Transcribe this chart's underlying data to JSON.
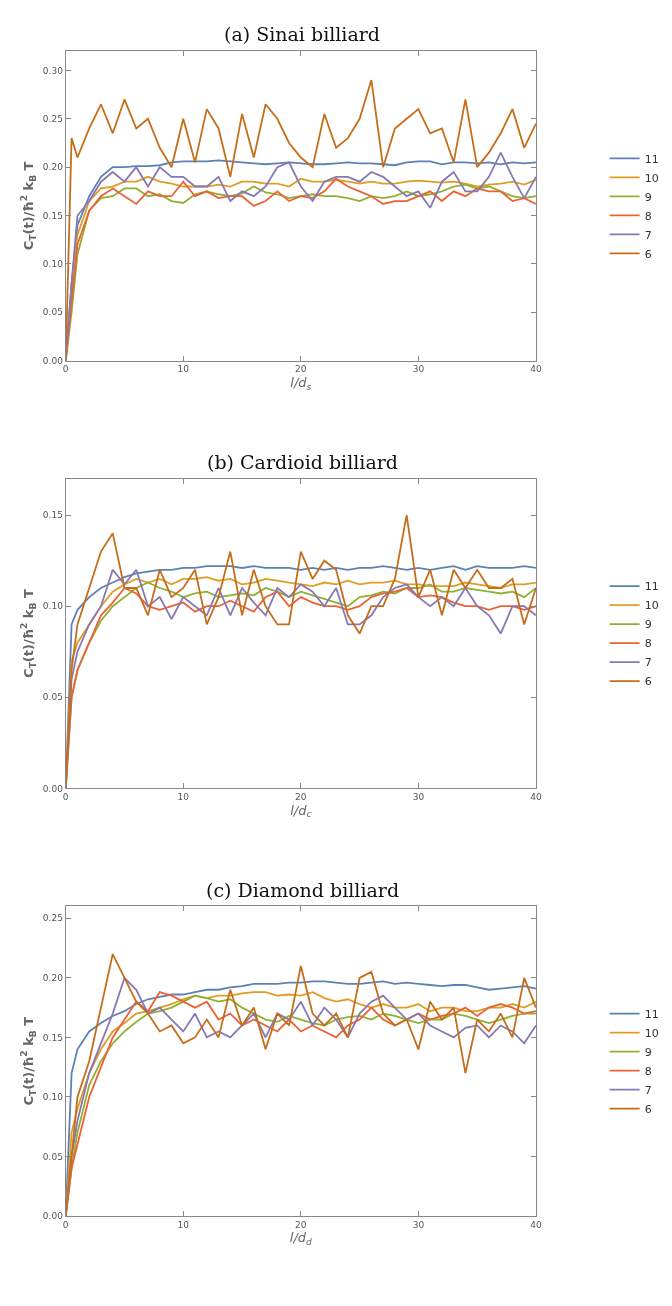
{
  "chart_data": [
    {
      "type": "line",
      "title": "(a) Sinai billiard",
      "xlabel": "l/d$_{s}$",
      "ylabel": "C$_{T}$(t)/ħ$^{2}$ k$_{B}$ T",
      "legend": "right",
      "marker": "none",
      "line_style": "solid",
      "x": [
        0,
        0.5,
        1,
        2,
        3,
        4,
        5,
        6,
        7,
        8,
        9,
        10,
        11,
        12,
        13,
        14,
        15,
        16,
        17,
        18,
        19,
        20,
        21,
        22,
        23,
        24,
        25,
        26,
        27,
        28,
        29,
        30,
        31,
        32,
        33,
        34,
        35,
        36,
        37,
        38,
        39,
        40
      ],
      "xlim": [
        0,
        40
      ],
      "xticks": [
        0,
        10,
        20,
        30,
        40
      ],
      "ylim": [
        0,
        0.32
      ],
      "yticks": [
        {
          "value": 0,
          "label": "0.00"
        },
        {
          "value": 0.05,
          "label": "0.05"
        },
        {
          "value": 0.1,
          "label": "0.10"
        },
        {
          "value": 0.15,
          "label": "0.15"
        },
        {
          "value": 0.2,
          "label": "0.20"
        },
        {
          "value": 0.25,
          "label": "0.25"
        },
        {
          "value": 0.3,
          "label": "0.30"
        }
      ],
      "series": [
        {
          "name": "11",
          "color": "#5e81b5",
          "values": [
            0,
            0.08,
            0.14,
            0.17,
            0.19,
            0.2,
            0.2,
            0.201,
            0.201,
            0.202,
            0.205,
            0.206,
            0.206,
            0.206,
            0.207,
            0.206,
            0.205,
            0.204,
            0.203,
            0.204,
            0.205,
            0.204,
            0.203,
            0.203,
            0.204,
            0.205,
            0.204,
            0.204,
            0.203,
            0.202,
            0.205,
            0.206,
            0.206,
            0.203,
            0.205,
            0.205,
            0.204,
            0.205,
            0.203,
            0.205,
            0.204,
            0.205
          ]
        },
        {
          "name": "10",
          "color": "#e19c24",
          "values": [
            0,
            0.07,
            0.13,
            0.165,
            0.178,
            0.18,
            0.185,
            0.185,
            0.19,
            0.185,
            0.183,
            0.18,
            0.18,
            0.18,
            0.182,
            0.18,
            0.185,
            0.185,
            0.183,
            0.183,
            0.18,
            0.188,
            0.185,
            0.185,
            0.187,
            0.185,
            0.183,
            0.185,
            0.183,
            0.183,
            0.185,
            0.186,
            0.185,
            0.184,
            0.185,
            0.183,
            0.18,
            0.182,
            0.183,
            0.185,
            0.182,
            0.187
          ]
        },
        {
          "name": "9",
          "color": "#8fb032",
          "values": [
            0,
            0.05,
            0.11,
            0.155,
            0.168,
            0.17,
            0.178,
            0.178,
            0.17,
            0.172,
            0.165,
            0.163,
            0.172,
            0.175,
            0.172,
            0.17,
            0.173,
            0.18,
            0.174,
            0.172,
            0.168,
            0.17,
            0.172,
            0.17,
            0.17,
            0.168,
            0.165,
            0.17,
            0.168,
            0.17,
            0.175,
            0.17,
            0.172,
            0.175,
            0.18,
            0.182,
            0.178,
            0.18,
            0.175,
            0.17,
            0.168,
            0.17
          ]
        },
        {
          "name": "8",
          "color": "#eb6235",
          "values": [
            0,
            0.06,
            0.12,
            0.155,
            0.17,
            0.178,
            0.17,
            0.162,
            0.175,
            0.17,
            0.17,
            0.185,
            0.17,
            0.175,
            0.168,
            0.17,
            0.17,
            0.16,
            0.165,
            0.175,
            0.165,
            0.17,
            0.168,
            0.175,
            0.188,
            0.18,
            0.175,
            0.17,
            0.162,
            0.165,
            0.165,
            0.17,
            0.175,
            0.165,
            0.175,
            0.17,
            0.178,
            0.175,
            0.175,
            0.165,
            0.168,
            0.162
          ]
        },
        {
          "name": "7",
          "color": "#8778b3",
          "values": [
            0,
            0.08,
            0.15,
            0.165,
            0.185,
            0.195,
            0.185,
            0.2,
            0.18,
            0.2,
            0.19,
            0.19,
            0.18,
            0.18,
            0.19,
            0.165,
            0.175,
            0.17,
            0.18,
            0.2,
            0.205,
            0.18,
            0.165,
            0.185,
            0.19,
            0.19,
            0.185,
            0.195,
            0.19,
            0.18,
            0.17,
            0.175,
            0.158,
            0.185,
            0.195,
            0.175,
            0.175,
            0.19,
            0.215,
            0.19,
            0.168,
            0.19
          ]
        },
        {
          "name": "6",
          "color": "#c56e1a",
          "values": [
            0,
            0.23,
            0.21,
            0.24,
            0.265,
            0.235,
            0.27,
            0.24,
            0.25,
            0.22,
            0.2,
            0.25,
            0.205,
            0.26,
            0.24,
            0.19,
            0.255,
            0.21,
            0.265,
            0.25,
            0.225,
            0.21,
            0.2,
            0.255,
            0.22,
            0.23,
            0.25,
            0.29,
            0.2,
            0.24,
            0.25,
            0.26,
            0.235,
            0.24,
            0.205,
            0.27,
            0.2,
            0.215,
            0.235,
            0.26,
            0.22,
            0.245
          ]
        }
      ]
    },
    {
      "type": "line",
      "title": "(b) Cardioid billiard",
      "xlabel": "l/d$_{c}$",
      "ylabel": "C$_{T}$(t)/ħ$^{2}$ k$_{B}$ T",
      "legend": "right",
      "marker": "none",
      "line_style": "solid",
      "x": [
        0,
        0.5,
        1,
        2,
        3,
        4,
        5,
        6,
        7,
        8,
        9,
        10,
        11,
        12,
        13,
        14,
        15,
        16,
        17,
        18,
        19,
        20,
        21,
        22,
        23,
        24,
        25,
        26,
        27,
        28,
        29,
        30,
        31,
        32,
        33,
        34,
        35,
        36,
        37,
        38,
        39,
        40
      ],
      "xlim": [
        0,
        40
      ],
      "xticks": [
        0,
        10,
        20,
        30,
        40
      ],
      "ylim": [
        0,
        0.17
      ],
      "yticks": [
        {
          "value": 0,
          "label": "0.00"
        },
        {
          "value": 0.05,
          "label": "0.05"
        },
        {
          "value": 0.1,
          "label": "0.10"
        },
        {
          "value": 0.15,
          "label": "0.15"
        }
      ],
      "series": [
        {
          "name": "11",
          "color": "#5e81b5",
          "values": [
            0,
            0.09,
            0.098,
            0.105,
            0.11,
            0.113,
            0.116,
            0.118,
            0.119,
            0.12,
            0.12,
            0.121,
            0.121,
            0.122,
            0.122,
            0.122,
            0.121,
            0.122,
            0.121,
            0.121,
            0.121,
            0.12,
            0.121,
            0.12,
            0.121,
            0.12,
            0.121,
            0.121,
            0.122,
            0.121,
            0.12,
            0.121,
            0.12,
            0.121,
            0.122,
            0.12,
            0.122,
            0.121,
            0.121,
            0.121,
            0.122,
            0.121
          ]
        },
        {
          "name": "10",
          "color": "#e19c24",
          "values": [
            0,
            0.07,
            0.08,
            0.09,
            0.1,
            0.108,
            0.112,
            0.115,
            0.113,
            0.115,
            0.112,
            0.115,
            0.115,
            0.116,
            0.114,
            0.115,
            0.112,
            0.113,
            0.115,
            0.114,
            0.113,
            0.112,
            0.111,
            0.113,
            0.112,
            0.114,
            0.112,
            0.113,
            0.113,
            0.114,
            0.112,
            0.112,
            0.111,
            0.111,
            0.111,
            0.113,
            0.112,
            0.111,
            0.11,
            0.112,
            0.112,
            0.113
          ]
        },
        {
          "name": "9",
          "color": "#8fb032",
          "values": [
            0,
            0.05,
            0.065,
            0.08,
            0.092,
            0.1,
            0.105,
            0.11,
            0.113,
            0.11,
            0.108,
            0.105,
            0.107,
            0.108,
            0.105,
            0.106,
            0.107,
            0.106,
            0.11,
            0.108,
            0.105,
            0.108,
            0.106,
            0.104,
            0.102,
            0.1,
            0.105,
            0.106,
            0.108,
            0.107,
            0.11,
            0.11,
            0.112,
            0.108,
            0.108,
            0.11,
            0.109,
            0.108,
            0.107,
            0.108,
            0.105,
            0.11
          ]
        },
        {
          "name": "8",
          "color": "#eb6235",
          "values": [
            0,
            0.05,
            0.065,
            0.08,
            0.095,
            0.102,
            0.11,
            0.107,
            0.1,
            0.098,
            0.1,
            0.102,
            0.097,
            0.1,
            0.1,
            0.103,
            0.1,
            0.097,
            0.105,
            0.108,
            0.1,
            0.105,
            0.102,
            0.1,
            0.1,
            0.098,
            0.1,
            0.105,
            0.107,
            0.108,
            0.11,
            0.105,
            0.106,
            0.105,
            0.102,
            0.1,
            0.1,
            0.098,
            0.1,
            0.1,
            0.098,
            0.1
          ]
        },
        {
          "name": "7",
          "color": "#8778b3",
          "values": [
            0,
            0.06,
            0.075,
            0.09,
            0.1,
            0.12,
            0.112,
            0.12,
            0.1,
            0.105,
            0.093,
            0.105,
            0.1,
            0.095,
            0.11,
            0.095,
            0.11,
            0.102,
            0.095,
            0.11,
            0.105,
            0.112,
            0.108,
            0.1,
            0.11,
            0.09,
            0.09,
            0.095,
            0.105,
            0.11,
            0.112,
            0.105,
            0.1,
            0.105,
            0.1,
            0.11,
            0.1,
            0.095,
            0.085,
            0.1,
            0.1,
            0.095
          ]
        },
        {
          "name": "6",
          "color": "#c56e1a",
          "values": [
            0,
            0.065,
            0.09,
            0.11,
            0.13,
            0.14,
            0.11,
            0.11,
            0.095,
            0.12,
            0.105,
            0.11,
            0.12,
            0.09,
            0.105,
            0.13,
            0.095,
            0.12,
            0.1,
            0.09,
            0.09,
            0.13,
            0.115,
            0.125,
            0.12,
            0.095,
            0.085,
            0.1,
            0.1,
            0.115,
            0.15,
            0.105,
            0.12,
            0.095,
            0.12,
            0.11,
            0.12,
            0.11,
            0.11,
            0.115,
            0.09,
            0.11
          ]
        }
      ]
    },
    {
      "type": "line",
      "title": "(c) Diamond billiard",
      "xlabel": "l/d$_{d}$",
      "ylabel": "C$_{T}$(t)/ħ$^{2}$ k$_{B}$ T",
      "legend": "right",
      "marker": "none",
      "line_style": "solid",
      "x": [
        0,
        0.5,
        1,
        2,
        3,
        4,
        5,
        6,
        7,
        8,
        9,
        10,
        11,
        12,
        13,
        14,
        15,
        16,
        17,
        18,
        19,
        20,
        21,
        22,
        23,
        24,
        25,
        26,
        27,
        28,
        29,
        30,
        31,
        32,
        33,
        34,
        35,
        36,
        37,
        38,
        39,
        40
      ],
      "xlim": [
        0,
        40
      ],
      "xticks": [
        0,
        10,
        20,
        30,
        40
      ],
      "ylim": [
        0,
        0.26
      ],
      "yticks": [
        {
          "value": 0,
          "label": "0.00"
        },
        {
          "value": 0.05,
          "label": "0.05"
        },
        {
          "value": 0.1,
          "label": "0.10"
        },
        {
          "value": 0.15,
          "label": "0.15"
        },
        {
          "value": 0.2,
          "label": "0.20"
        },
        {
          "value": 0.25,
          "label": "0.25"
        }
      ],
      "series": [
        {
          "name": "11",
          "color": "#5e81b5",
          "values": [
            0,
            0.12,
            0.14,
            0.155,
            0.162,
            0.168,
            0.172,
            0.178,
            0.182,
            0.184,
            0.186,
            0.186,
            0.188,
            0.19,
            0.19,
            0.192,
            0.193,
            0.195,
            0.195,
            0.195,
            0.196,
            0.196,
            0.197,
            0.197,
            0.196,
            0.195,
            0.195,
            0.196,
            0.197,
            0.195,
            0.196,
            0.195,
            0.194,
            0.193,
            0.194,
            0.194,
            0.192,
            0.19,
            0.191,
            0.192,
            0.193,
            0.191
          ]
        },
        {
          "name": "10",
          "color": "#e19c24",
          "values": [
            0,
            0.07,
            0.09,
            0.12,
            0.14,
            0.155,
            0.162,
            0.17,
            0.172,
            0.175,
            0.178,
            0.182,
            0.185,
            0.183,
            0.185,
            0.185,
            0.187,
            0.188,
            0.188,
            0.185,
            0.186,
            0.185,
            0.188,
            0.183,
            0.18,
            0.182,
            0.178,
            0.175,
            0.178,
            0.175,
            0.175,
            0.178,
            0.172,
            0.175,
            0.175,
            0.172,
            0.172,
            0.175,
            0.175,
            0.178,
            0.175,
            0.18
          ]
        },
        {
          "name": "9",
          "color": "#8fb032",
          "values": [
            0,
            0.04,
            0.07,
            0.11,
            0.13,
            0.145,
            0.155,
            0.163,
            0.17,
            0.172,
            0.175,
            0.18,
            0.185,
            0.183,
            0.18,
            0.182,
            0.175,
            0.17,
            0.165,
            0.163,
            0.168,
            0.165,
            0.162,
            0.16,
            0.165,
            0.167,
            0.168,
            0.165,
            0.17,
            0.168,
            0.165,
            0.162,
            0.165,
            0.165,
            0.17,
            0.168,
            0.165,
            0.162,
            0.165,
            0.168,
            0.17,
            0.17
          ]
        },
        {
          "name": "8",
          "color": "#eb6235",
          "values": [
            0,
            0.04,
            0.06,
            0.1,
            0.125,
            0.15,
            0.165,
            0.18,
            0.172,
            0.188,
            0.185,
            0.18,
            0.175,
            0.18,
            0.165,
            0.17,
            0.16,
            0.165,
            0.16,
            0.155,
            0.165,
            0.155,
            0.16,
            0.155,
            0.15,
            0.16,
            0.165,
            0.175,
            0.165,
            0.16,
            0.165,
            0.17,
            0.165,
            0.168,
            0.17,
            0.175,
            0.168,
            0.175,
            0.178,
            0.175,
            0.17,
            0.172
          ]
        },
        {
          "name": "7",
          "color": "#8778b3",
          "values": [
            0,
            0.05,
            0.08,
            0.12,
            0.145,
            0.17,
            0.2,
            0.19,
            0.17,
            0.175,
            0.165,
            0.155,
            0.17,
            0.15,
            0.155,
            0.15,
            0.16,
            0.17,
            0.15,
            0.17,
            0.165,
            0.18,
            0.16,
            0.175,
            0.165,
            0.15,
            0.17,
            0.18,
            0.185,
            0.175,
            0.165,
            0.17,
            0.16,
            0.155,
            0.15,
            0.158,
            0.16,
            0.15,
            0.16,
            0.155,
            0.145,
            0.16
          ]
        },
        {
          "name": "6",
          "color": "#c56e1a",
          "values": [
            0,
            0.05,
            0.1,
            0.13,
            0.175,
            0.22,
            0.2,
            0.18,
            0.17,
            0.155,
            0.16,
            0.145,
            0.15,
            0.165,
            0.15,
            0.19,
            0.16,
            0.175,
            0.14,
            0.17,
            0.16,
            0.21,
            0.17,
            0.16,
            0.17,
            0.15,
            0.2,
            0.205,
            0.17,
            0.16,
            0.165,
            0.14,
            0.18,
            0.165,
            0.175,
            0.12,
            0.165,
            0.155,
            0.17,
            0.15,
            0.2,
            0.175
          ]
        }
      ]
    }
  ]
}
